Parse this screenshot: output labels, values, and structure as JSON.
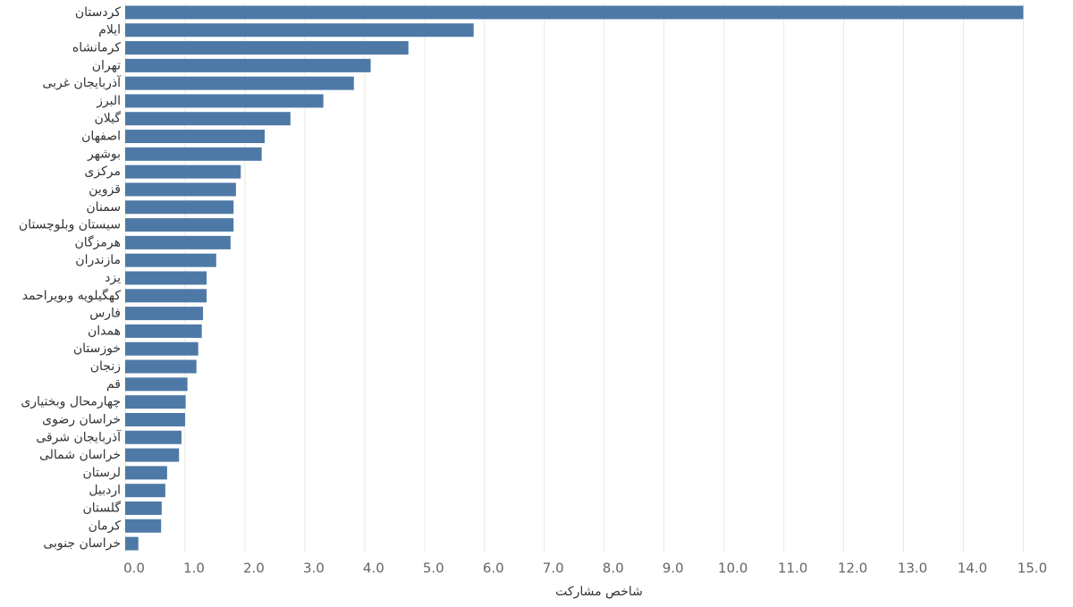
{
  "chart_data": {
    "type": "barh",
    "x_label": "شاخص مشارکت",
    "categories": [
      "کردستان",
      "ایلام",
      "کرمانشاه",
      "تهران",
      "آذربایجان غربی",
      "البرز",
      "گیلان",
      "اصفهان",
      "بوشهر",
      "مرکزی",
      "قزوین",
      "سمنان",
      "سیستان وبلوچستان",
      "هرمزگان",
      "مازندران",
      "یزد",
      "کهگیلویه وبویراحمد",
      "فارس",
      "همدان",
      "خوزستان",
      "زنجان",
      "قم",
      "چهارمحال وبختیاری",
      "خراسان رضوی",
      "آذربایجان شرقی",
      "خراسان شمالی",
      "لرستان",
      "اردبیل",
      "گلستان",
      "کرمان",
      "خراسان جنوبی"
    ],
    "values": [
      15.0,
      5.82,
      4.73,
      4.1,
      3.82,
      3.31,
      2.76,
      2.33,
      2.28,
      1.93,
      1.85,
      1.81,
      1.81,
      1.76,
      1.52,
      1.36,
      1.36,
      1.3,
      1.28,
      1.22,
      1.19,
      1.04,
      1.01,
      1.0,
      0.94,
      0.9,
      0.7,
      0.67,
      0.61,
      0.6,
      0.22
    ],
    "color": "#4e79a7",
    "xlim": [
      0,
      15.8
    ],
    "xticks": [
      {
        "value": 0,
        "label": "0.0"
      },
      {
        "value": 1,
        "label": "1.0"
      },
      {
        "value": 2,
        "label": "2.0"
      },
      {
        "value": 3,
        "label": "3.0"
      },
      {
        "value": 4,
        "label": "4.0"
      },
      {
        "value": 5,
        "label": "5.0"
      },
      {
        "value": 6,
        "label": "6.0"
      },
      {
        "value": 7,
        "label": "7.0"
      },
      {
        "value": 8,
        "label": "8.0"
      },
      {
        "value": 9,
        "label": "9.0"
      },
      {
        "value": 10,
        "label": "10.0"
      },
      {
        "value": 11,
        "label": "11.0"
      },
      {
        "value": 12,
        "label": "12.0"
      },
      {
        "value": 13,
        "label": "13.0"
      },
      {
        "value": 14,
        "label": "14.0"
      },
      {
        "value": 15,
        "label": "15.0"
      }
    ],
    "grid": true
  }
}
